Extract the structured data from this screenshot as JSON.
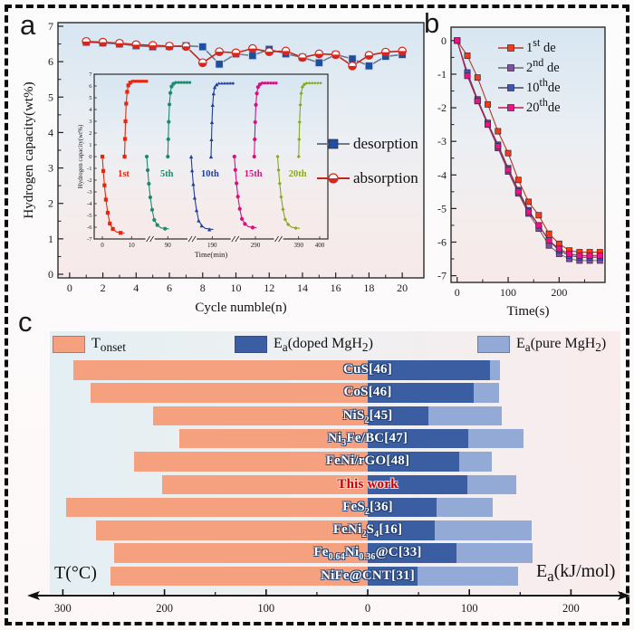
{
  "figure": {
    "background_top": "#d7e6f2",
    "background_bottom": "#f7e9e9"
  },
  "panel_a": {
    "letter": "a",
    "xlabel": "Cycle numble(n)",
    "ylabel": "Hydrogen capacity(wt%)",
    "legend": [
      {
        "label": "desorption",
        "marker": "square",
        "marker_color": "#1e4f9e",
        "line_color": "#6b7b8d"
      },
      {
        "label": "absorption",
        "marker": "half-circle",
        "marker_color": "#d9261c",
        "line_color": "#c3251c"
      }
    ]
  },
  "panel_b": {
    "letter": "b",
    "xlabel": "Time(s)",
    "legend": [
      {
        "label_html": "1<sup>st</sup> de",
        "marker_color": "#f33b14",
        "line_color": "#b03a28"
      },
      {
        "label_html": "2<sup>nd</sup> de",
        "marker_color": "#7d4fa6",
        "line_color": "#6b6b6b"
      },
      {
        "label_html": "10<sup>th</sup>de",
        "marker_color": "#3a55c0",
        "line_color": "#4a4a5a"
      },
      {
        "label_html": "20<sup>th</sup>de",
        "marker_color": "#ee1289",
        "line_color": "#c2185b"
      }
    ]
  },
  "panel_c": {
    "letter": "c",
    "left_axis_label": "T(°C)",
    "right_axis_label_html": "E<sub>a</sub>(kJ/mol)",
    "legend": [
      {
        "label_html": "T<sub>onset</sub>",
        "color": "#f5a07f"
      },
      {
        "label_html": "E<sub>a</sub>(doped MgH<sub>2</sub>)",
        "color": "#3b5da1"
      },
      {
        "label_html": "E<sub>a</sub>(pure MgH<sub>2</sub>)",
        "color": "#93a9d6"
      }
    ]
  },
  "chart_data": [
    {
      "id": "cycling-stability",
      "type": "line",
      "title": "",
      "xlabel": "Cycle numble(n)",
      "ylabel": "Hydrogen capacity(wt%)",
      "xlim": [
        -0.7,
        21.3
      ],
      "ylim": [
        0,
        7
      ],
      "x_ticks": [
        0,
        2,
        4,
        6,
        8,
        10,
        12,
        14,
        16,
        18,
        20
      ],
      "y_ticks": [
        0,
        1,
        2,
        3,
        4,
        5,
        6,
        7
      ],
      "legend_position": "right-inside",
      "x": [
        1,
        2,
        3,
        4,
        5,
        6,
        7,
        8,
        9,
        10,
        11,
        12,
        13,
        14,
        15,
        16,
        17,
        18,
        19,
        20
      ],
      "series": [
        {
          "name": "desorption",
          "marker": "square",
          "marker_color": "#1e4f9e",
          "line_color": "#6b7b8d",
          "values": [
            6.55,
            6.53,
            6.5,
            6.45,
            6.42,
            6.43,
            6.45,
            6.42,
            5.93,
            6.22,
            6.17,
            6.35,
            6.22,
            6.12,
            5.97,
            6.2,
            6.08,
            5.88,
            6.15,
            6.2
          ]
        },
        {
          "name": "absorption",
          "marker": "half-circle",
          "marker_color": "#d9261c",
          "line_color": "#c3251c",
          "values": [
            6.57,
            6.55,
            6.52,
            6.48,
            6.46,
            6.44,
            6.43,
            5.97,
            6.28,
            6.25,
            6.37,
            6.28,
            6.3,
            6.12,
            6.22,
            6.2,
            5.88,
            6.18,
            6.27,
            6.3
          ]
        }
      ]
    },
    {
      "id": "inset-kinetics-cycles",
      "type": "line",
      "xlabel": "Time(min)",
      "ylabel": "Hydrogen capacity(wt%)",
      "ylim": [
        -7,
        7
      ],
      "y_ticks": [
        -7,
        -6,
        -5,
        -4,
        -3,
        -2,
        -1,
        0,
        1,
        2,
        3,
        4,
        5,
        6,
        7
      ],
      "x_ticks": [
        {
          "label": "0",
          "f": 0.035
        },
        {
          "label": "10",
          "f": 0.16
        },
        {
          "label": "90",
          "f": 0.315
        },
        {
          "label": "190",
          "f": 0.505
        },
        {
          "label": "290",
          "f": 0.69
        },
        {
          "label": "390",
          "f": 0.875
        },
        {
          "label": "400",
          "f": 0.965
        }
      ],
      "axis_breaks_f": [
        0.235,
        0.415,
        0.6,
        0.785
      ],
      "groups": [
        {
          "label": "1st",
          "color": "#e8250e",
          "marker": "square",
          "desorb_f": 0.035,
          "absorb_f": 0.13,
          "cap_abs": 6.4,
          "cap_des": -6.5
        },
        {
          "label": "5th",
          "color": "#1c8a6e",
          "marker": "circle",
          "desorb_f": 0.225,
          "absorb_f": 0.315,
          "cap_abs": 6.3,
          "cap_des": -6.15
        },
        {
          "label": "10th",
          "color": "#1f3f94",
          "marker": "triangle",
          "desorb_f": 0.415,
          "absorb_f": 0.5,
          "cap_abs": 6.25,
          "cap_des": -6.2
        },
        {
          "label": "15th",
          "color": "#d6117e",
          "marker": "circle",
          "desorb_f": 0.6,
          "absorb_f": 0.685,
          "cap_abs": 6.25,
          "cap_des": -6.05
        },
        {
          "label": "20th",
          "color": "#86a918",
          "marker": "diamond",
          "desorb_f": 0.785,
          "absorb_f": 0.875,
          "cap_abs": 6.25,
          "cap_des": -6.1
        }
      ]
    },
    {
      "id": "desorption-kinetics",
      "type": "line",
      "xlabel": "Time(s)",
      "xlim": [
        -12,
        290
      ],
      "ylim": [
        0.4,
        -7.2
      ],
      "x_ticks": [
        0,
        100,
        200
      ],
      "x_minor_ticks": [
        50,
        150,
        250
      ],
      "y_ticks": [
        0,
        -1,
        -2,
        -3,
        -4,
        -5,
        -6,
        -7
      ],
      "legend_position": "top-right-inside",
      "x": [
        0,
        20,
        40,
        60,
        80,
        100,
        120,
        140,
        160,
        180,
        200,
        220,
        240,
        260,
        280
      ],
      "series": [
        {
          "name": "1st de",
          "marker_color": "#f33b14",
          "line_color": "#b03a28",
          "values": [
            0,
            -0.45,
            -1.1,
            -1.9,
            -2.7,
            -3.35,
            -4.15,
            -4.8,
            -5.2,
            -5.75,
            -6.05,
            -6.25,
            -6.3,
            -6.3,
            -6.3
          ]
        },
        {
          "name": "2nd de",
          "marker_color": "#7d4fa6",
          "line_color": "#6b6b6b",
          "values": [
            0,
            -1.0,
            -1.8,
            -2.5,
            -3.2,
            -3.9,
            -4.55,
            -5.15,
            -5.6,
            -6.1,
            -6.35,
            -6.5,
            -6.55,
            -6.55,
            -6.55
          ]
        },
        {
          "name": "10th de",
          "marker_color": "#3a55c0",
          "line_color": "#4a4a5a",
          "values": [
            0,
            -0.95,
            -1.75,
            -2.45,
            -3.1,
            -3.8,
            -4.45,
            -5.05,
            -5.5,
            -5.95,
            -6.25,
            -6.4,
            -6.45,
            -6.45,
            -6.45
          ]
        },
        {
          "name": "20th de",
          "marker_color": "#ee1289",
          "line_color": "#c2185b",
          "values": [
            0,
            -1.05,
            -1.8,
            -2.5,
            -3.15,
            -3.85,
            -4.5,
            -5.1,
            -5.5,
            -5.95,
            -6.2,
            -6.35,
            -6.4,
            -6.4,
            -6.4
          ]
        }
      ]
    },
    {
      "id": "comparison-bars",
      "type": "bar",
      "orientation": "horizontal-diverging",
      "left_axis": {
        "label": "T(°C)",
        "ticks": [
          300,
          200,
          100,
          0
        ]
      },
      "right_axis": {
        "label": "Ea(kJ/mol)",
        "ticks": [
          100,
          200
        ]
      },
      "colors": {
        "T_onset": "#f5a07f",
        "Ea_doped": "#3b5da1",
        "Ea_pure": "#93a9d6",
        "label_fill": "#ffffff",
        "label_outline": "#24406e"
      },
      "rows": [
        {
          "label_html": "CuS[46]",
          "T_onset": 290,
          "Ea_doped": 120,
          "Ea_pure": 130
        },
        {
          "label_html": "CoS[46]",
          "T_onset": 273,
          "Ea_doped": 104,
          "Ea_pure": 129
        },
        {
          "label_html": "NiS<sub>2</sub>[45]",
          "T_onset": 211,
          "Ea_doped": 60,
          "Ea_pure": 132
        },
        {
          "label_html": "Ni<sub>3</sub>Fe/BC[47]",
          "T_onset": 185,
          "Ea_doped": 99,
          "Ea_pure": 153
        },
        {
          "label_html": "FeNi/rGO[48]",
          "T_onset": 230,
          "Ea_doped": 90,
          "Ea_pure": 122
        },
        {
          "label_html": "This work",
          "T_onset": 202,
          "Ea_doped": 98,
          "Ea_pure": 146,
          "label_color": "#c00010",
          "label_outline": "#f6ddc9"
        },
        {
          "label_html": "FeS<sub>2</sub>[36]",
          "T_onset": 297,
          "Ea_doped": 68,
          "Ea_pure": 123
        },
        {
          "label_html": "FeNi<sub>2</sub>S<sub>4</sub>[16]",
          "T_onset": 267,
          "Ea_doped": 66,
          "Ea_pure": 161
        },
        {
          "label_html": "Fe<sub>0.64</sub>Ni<sub>0.36</sub>@C[33]",
          "T_onset": 250,
          "Ea_doped": 87,
          "Ea_pure": 162
        },
        {
          "label_html": "NiFe@CNT[31]",
          "T_onset": 253,
          "Ea_doped": 49,
          "Ea_pure": 148
        }
      ]
    }
  ]
}
